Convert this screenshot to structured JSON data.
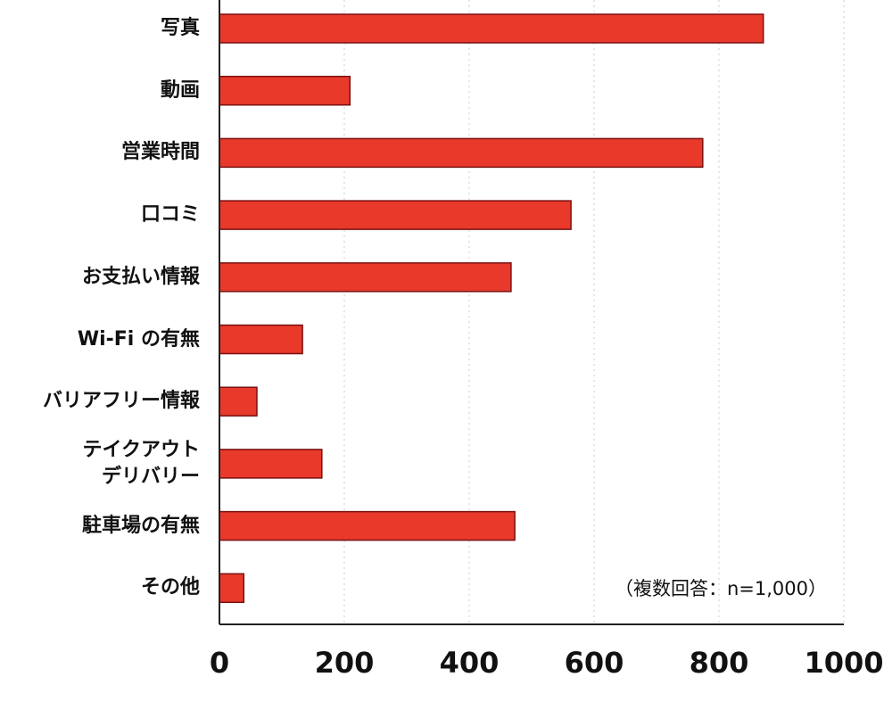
{
  "chart_data": {
    "type": "bar",
    "orientation": "horizontal",
    "categories": [
      "写真",
      "動画",
      "営業時間",
      "口コミ",
      "お支払い情報",
      "Wi-Fi の有無",
      "バリアフリー情報",
      "テイクアウト\nデリバリー",
      "駐車場の有無",
      "その他"
    ],
    "values": [
      871,
      209,
      774,
      563,
      467,
      133,
      60,
      164,
      473,
      39
    ],
    "color": "#e8392b",
    "edge_color": "#7a1010",
    "xlim": [
      0,
      1000
    ],
    "xticks": [
      0,
      200,
      400,
      600,
      800,
      1000
    ],
    "grid": true,
    "annotation": "（複数回答：n=1,000）"
  }
}
